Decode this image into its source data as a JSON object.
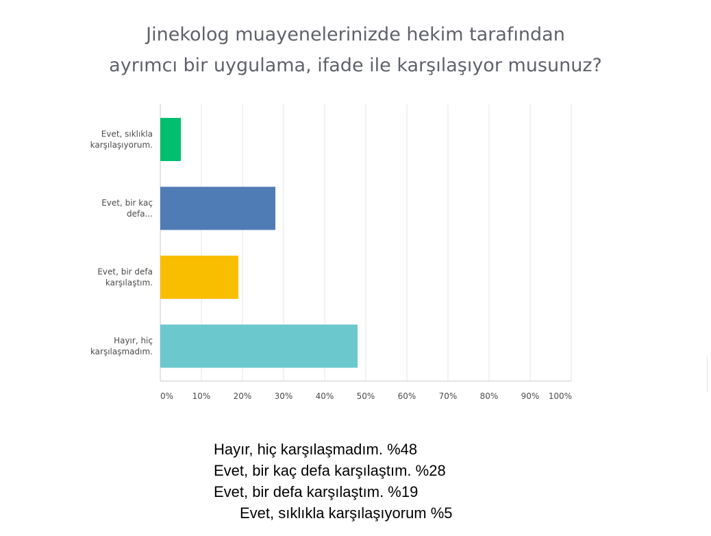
{
  "title": {
    "line1": "Jinekolog muayenelerinizde hekim tarafından",
    "line2": "ayrımcı bir uygulama, ifade ile karşılaşıyor musunuz?"
  },
  "chart_data": {
    "type": "bar",
    "orientation": "horizontal",
    "categories": [
      [
        "Evet, sıklıkla",
        "karşılaşıyorum."
      ],
      [
        "Evet, bir kaç",
        "defa..."
      ],
      [
        "Evet, bir defa",
        "karşılaştım."
      ],
      [
        "Hayır, hiç",
        "karşılaşmadım."
      ]
    ],
    "values": [
      5,
      28,
      19,
      48
    ],
    "colors": [
      "#00bf6f",
      "#507cb6",
      "#f9be00",
      "#6bc8cd"
    ],
    "xlim": [
      0,
      100
    ],
    "ticks": [
      "0%",
      "10%",
      "20%",
      "30%",
      "40%",
      "50%",
      "60%",
      "70%",
      "80%",
      "90%",
      "100%"
    ],
    "grid": true,
    "xlabel": "",
    "ylabel": ""
  },
  "summary": [
    "Hayır, hiç karşılaşmadım. %48",
    "Evet, bir kaç defa karşılaştım. %28",
    "Evet, bir defa karşılaştım. %19",
    "Evet, sıklıkla karşılaşıyorum %5"
  ]
}
